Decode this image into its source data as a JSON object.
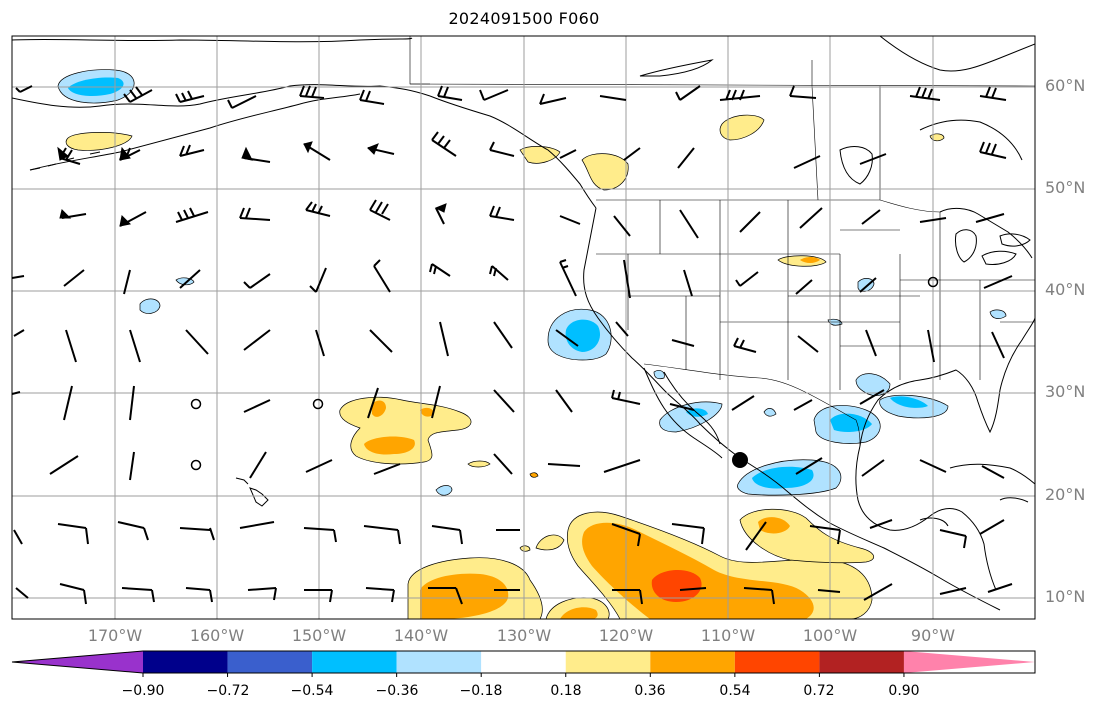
{
  "title": "2024091500 F060",
  "lat_labels": [
    "60°N",
    "50°N",
    "40°N",
    "30°N",
    "20°N",
    "10°N"
  ],
  "lon_labels": [
    "170°W",
    "160°W",
    "150°W",
    "140°W",
    "130°W",
    "120°W",
    "110°W",
    "100°W",
    "90°W"
  ],
  "colorbar": {
    "ticks": [
      "−0.90",
      "−0.72",
      "−0.54",
      "−0.36",
      "−0.18",
      "0.18",
      "0.36",
      "0.54",
      "0.72",
      "0.90"
    ],
    "colors": [
      "#9932cc",
      "#00008b",
      "#3a5fcd",
      "#00bfff",
      "#b0e2ff",
      "#ffffff",
      "#ffec8b",
      "#ffa500",
      "#ff4500",
      "#b22222",
      "#ff82ab"
    ]
  },
  "fill_colors": {
    "light_blue": "#b0e2ff",
    "blue": "#00bfff",
    "yellow": "#ffec8b",
    "orange": "#ffa500",
    "red_orange": "#ff4500"
  },
  "map_extent": {
    "lon_min": -180,
    "lon_max": -80,
    "lat_min": 8,
    "lat_max": 65
  }
}
